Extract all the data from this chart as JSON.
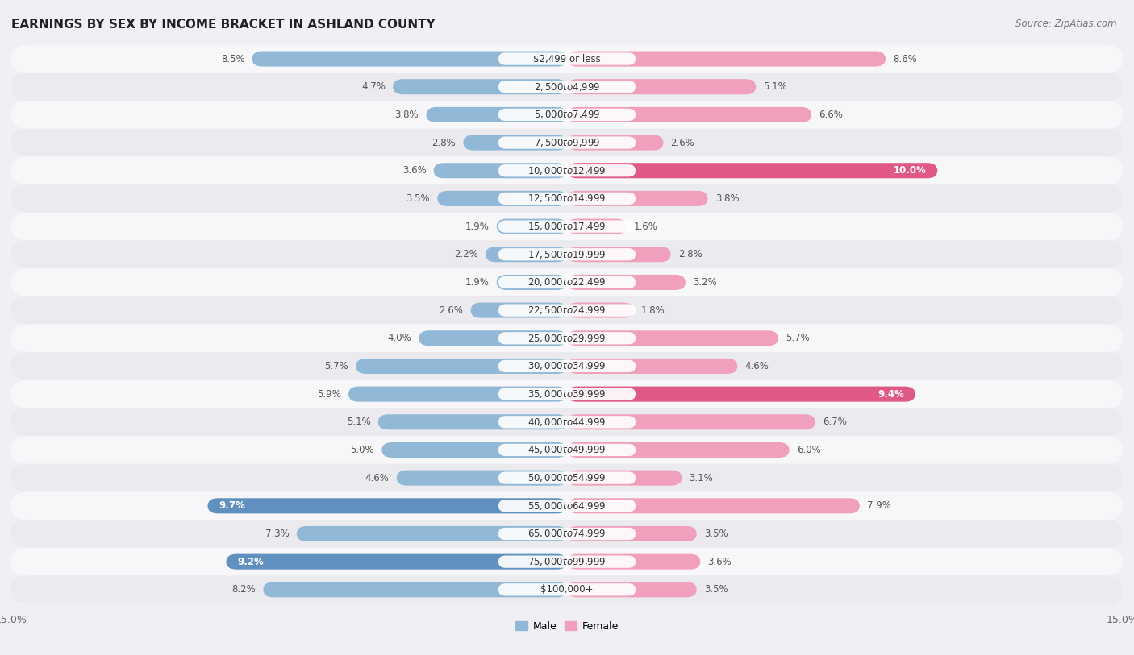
{
  "title": "EARNINGS BY SEX BY INCOME BRACKET IN ASHLAND COUNTY",
  "source": "Source: ZipAtlas.com",
  "categories": [
    "$2,499 or less",
    "$2,500 to $4,999",
    "$5,000 to $7,499",
    "$7,500 to $9,999",
    "$10,000 to $12,499",
    "$12,500 to $14,999",
    "$15,000 to $17,499",
    "$17,500 to $19,999",
    "$20,000 to $22,499",
    "$22,500 to $24,999",
    "$25,000 to $29,999",
    "$30,000 to $34,999",
    "$35,000 to $39,999",
    "$40,000 to $44,999",
    "$45,000 to $49,999",
    "$50,000 to $54,999",
    "$55,000 to $64,999",
    "$65,000 to $74,999",
    "$75,000 to $99,999",
    "$100,000+"
  ],
  "male_values": [
    8.5,
    4.7,
    3.8,
    2.8,
    3.6,
    3.5,
    1.9,
    2.2,
    1.9,
    2.6,
    4.0,
    5.7,
    5.9,
    5.1,
    5.0,
    4.6,
    9.7,
    7.3,
    9.2,
    8.2
  ],
  "female_values": [
    8.6,
    5.1,
    6.6,
    2.6,
    10.0,
    3.8,
    1.6,
    2.8,
    3.2,
    1.8,
    5.7,
    4.6,
    9.4,
    6.7,
    6.0,
    3.1,
    7.9,
    3.5,
    3.6,
    3.5
  ],
  "male_color": "#92b8d8",
  "female_color": "#f0a0bc",
  "male_highlight_color": "#6090c0",
  "female_highlight_color": "#e05888",
  "highlight_male": [
    16,
    18
  ],
  "highlight_female": [
    4,
    12
  ],
  "row_colors": [
    "#f0f0f0",
    "#e0e0e8"
  ],
  "bg_color": "#f0f0f4",
  "xlim": 15.0,
  "bar_height": 0.55,
  "label_fontsize": 8.5,
  "value_fontsize": 8.5
}
